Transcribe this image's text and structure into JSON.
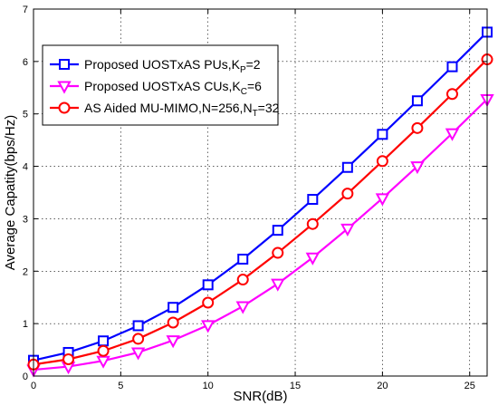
{
  "chart_data": {
    "type": "line",
    "xlabel": "SNR(dB)",
    "ylabel": "Average Capatity(bps/Hz)",
    "xlim": [
      0,
      26
    ],
    "ylim": [
      0,
      7
    ],
    "xticks": [
      0,
      5,
      10,
      15,
      20,
      25
    ],
    "yticks": [
      0,
      1,
      2,
      3,
      4,
      5,
      6,
      7
    ],
    "grid": true,
    "legend_position": "top-left",
    "x": [
      0,
      2,
      4,
      6,
      8,
      10,
      12,
      14,
      16,
      18,
      20,
      22,
      24,
      26
    ],
    "series": [
      {
        "name": "Proposed UOSTxAS PUs,K",
        "name_sub": "P",
        "name_suffix": "=2",
        "color": "#0000ff",
        "marker": "square",
        "values": [
          0.3,
          0.45,
          0.67,
          0.96,
          1.31,
          1.74,
          2.23,
          2.78,
          3.37,
          3.98,
          4.61,
          5.25,
          5.9,
          6.56
        ]
      },
      {
        "name": "Proposed UOSTxAS CUs,K",
        "name_sub": "C",
        "name_suffix": "=6",
        "color": "#ff00ff",
        "marker": "triangle-down",
        "values": [
          0.12,
          0.18,
          0.29,
          0.45,
          0.68,
          0.97,
          1.33,
          1.76,
          2.26,
          2.81,
          3.39,
          4.0,
          4.63,
          5.28
        ]
      },
      {
        "name": "AS Aided MU-MIMO,N=256,N",
        "name_sub": "T",
        "name_suffix": "=32",
        "color": "#ff0000",
        "marker": "circle",
        "values": [
          0.22,
          0.32,
          0.48,
          0.71,
          1.02,
          1.4,
          1.84,
          2.35,
          2.9,
          3.48,
          4.1,
          4.73,
          5.38,
          6.04
        ]
      }
    ]
  }
}
